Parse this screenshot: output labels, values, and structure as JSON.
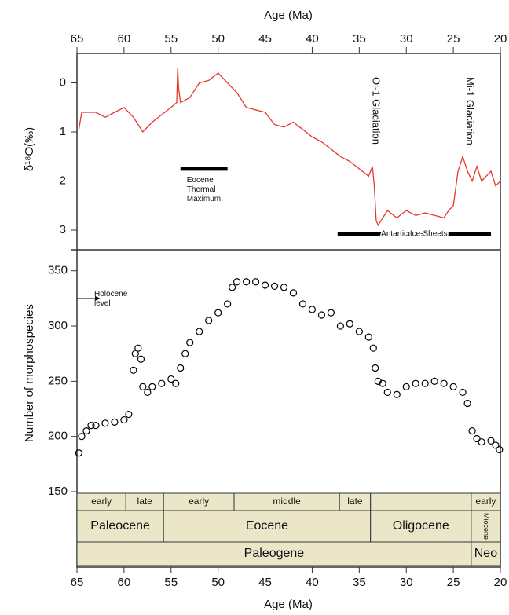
{
  "chart_data": [
    {
      "type": "line",
      "x_label": "Age (Ma)",
      "y_label": "δ¹⁸O(‰)",
      "xlim": [
        65,
        20
      ],
      "xticks": [
        65,
        60,
        55,
        50,
        45,
        40,
        35,
        30,
        25,
        20
      ],
      "ylim": [
        -0.6,
        3.4
      ],
      "y_inverted": true,
      "yticks": [
        0,
        1,
        2,
        3
      ],
      "x": [
        64.8,
        64.5,
        63,
        62,
        61,
        60,
        59,
        58,
        57,
        56,
        55,
        54.4,
        54.3,
        54.2,
        54,
        53,
        52,
        51,
        50,
        49,
        48,
        47,
        46,
        45,
        44,
        43,
        42,
        41,
        40,
        39,
        38,
        37,
        36,
        35,
        34,
        33.6,
        33.4,
        33.2,
        33,
        32,
        31,
        30,
        29,
        28,
        27,
        26,
        25.5,
        25,
        24.5,
        24,
        23.5,
        23,
        22.5,
        22,
        21,
        20.5,
        20
      ],
      "series": [
        {
          "name": "δ18O",
          "color": "#e8372c",
          "values": [
            0.95,
            0.6,
            0.6,
            0.7,
            0.6,
            0.5,
            0.7,
            1.0,
            0.8,
            0.65,
            0.5,
            0.4,
            -0.3,
            0.1,
            0.4,
            0.3,
            0.0,
            -0.05,
            -0.2,
            0.0,
            0.2,
            0.5,
            0.55,
            0.6,
            0.85,
            0.9,
            0.8,
            0.95,
            1.1,
            1.2,
            1.35,
            1.5,
            1.6,
            1.75,
            1.9,
            1.7,
            2.1,
            2.8,
            2.9,
            2.6,
            2.75,
            2.6,
            2.7,
            2.65,
            2.7,
            2.75,
            2.6,
            2.5,
            1.8,
            1.5,
            1.8,
            2.0,
            1.7,
            2.0,
            1.8,
            2.1,
            2.0
          ]
        }
      ],
      "annotations": [
        {
          "text": "Eocene\nThermal\nMaximum",
          "range": [
            54,
            49
          ],
          "y": 1.75
        },
        {
          "text": "Antartic Ice-Sheets",
          "range": [
            37.3,
            21
          ],
          "y": 3.08
        },
        {
          "text": "Oi-1 Glaciation",
          "x": 33.3
        },
        {
          "text": "Mi-1 Glaciation",
          "x": 23.3
        }
      ]
    },
    {
      "type": "scatter",
      "x_label": "Age (Ma)",
      "y_label": "Number of morphospecies",
      "xlim": [
        65,
        20
      ],
      "xticks": [
        65,
        60,
        55,
        50,
        45,
        40,
        35,
        30,
        25,
        20
      ],
      "ylim": [
        150,
        369
      ],
      "yticks": [
        150,
        200,
        250,
        300,
        350
      ],
      "x": [
        64.8,
        64.5,
        64,
        63.5,
        63,
        62,
        61,
        60,
        59.5,
        59,
        58.8,
        58.5,
        58.2,
        58,
        57.5,
        57,
        56,
        55,
        54.5,
        54,
        53.5,
        53,
        52,
        51,
        50,
        49,
        48.5,
        48,
        47,
        46,
        45,
        44,
        43,
        42,
        41,
        40,
        39,
        38,
        37,
        36,
        35,
        34,
        33.5,
        33.3,
        33,
        32.5,
        32,
        31,
        30,
        29,
        28,
        27,
        26,
        25,
        24,
        23.5,
        23,
        22.5,
        22,
        21,
        20.5,
        20.1
      ],
      "series": [
        {
          "name": "morphospecies",
          "color": "#000000",
          "values": [
            185,
            200,
            205,
            210,
            210,
            212,
            213,
            215,
            220,
            260,
            275,
            280,
            270,
            245,
            240,
            245,
            248,
            252,
            248,
            262,
            275,
            285,
            295,
            305,
            312,
            320,
            335,
            340,
            340,
            340,
            337,
            336,
            335,
            330,
            320,
            315,
            310,
            312,
            300,
            302,
            295,
            290,
            280,
            262,
            250,
            248,
            240,
            238,
            245,
            248,
            248,
            250,
            248,
            245,
            240,
            230,
            205,
            198,
            195,
            196,
            192,
            188
          ]
        }
      ],
      "annotation": {
        "text": "Holocene\nlevel",
        "y": 325
      },
      "time_scale": [
        [
          {
            "label": "early",
            "start": 65,
            "end": 59.8
          },
          {
            "label": "late",
            "start": 59.8,
            "end": 55.8
          },
          {
            "label": "early",
            "start": 55.8,
            "end": 48.3
          },
          {
            "label": "middle",
            "start": 48.3,
            "end": 37.1
          },
          {
            "label": "late",
            "start": 37.1,
            "end": 33.8
          },
          {
            "label": "",
            "start": 33.8,
            "end": 23.1
          },
          {
            "label": "early",
            "start": 23.1,
            "end": 20
          }
        ],
        [
          {
            "label": "Paleocene",
            "start": 65,
            "end": 55.8
          },
          {
            "label": "Eocene",
            "start": 55.8,
            "end": 33.8
          },
          {
            "label": "Oligocene",
            "start": 33.8,
            "end": 23.1
          },
          {
            "label": "Miocene",
            "start": 23.1,
            "end": 20
          }
        ],
        [
          {
            "label": "Paleogene",
            "start": 65,
            "end": 23.1
          },
          {
            "label": "Neo",
            "start": 23.1,
            "end": 20
          }
        ]
      ]
    }
  ]
}
